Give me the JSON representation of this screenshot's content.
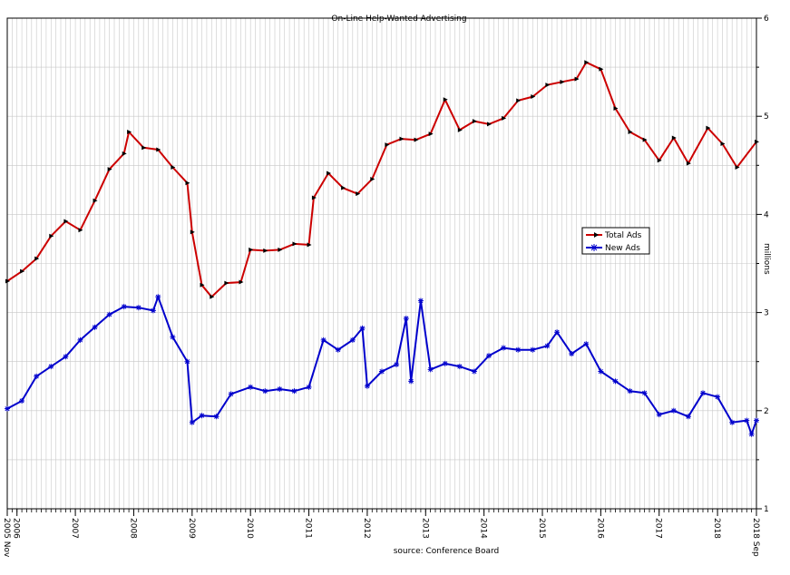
{
  "chart_data": {
    "type": "line",
    "title": "On-Line Help-Wanted Advertising",
    "source": "source: Conference Board",
    "ylabel": "millions",
    "ylim": [
      1,
      6
    ],
    "y_ticks": [
      1,
      2,
      3,
      4,
      5,
      6
    ],
    "x_range": [
      "2005-11",
      "2018-09"
    ],
    "x_tick_labels": [
      "2005 Nov",
      "2006",
      "2007",
      "2008",
      "2009",
      "2010",
      "2011",
      "2012",
      "2013",
      "2014",
      "2015",
      "2016",
      "2017",
      "2018",
      "2018 Sep"
    ],
    "grid": true,
    "legend_placement": "right-center",
    "series": [
      {
        "name": "Total Ads",
        "color": "#cc0000",
        "marker": "arrow",
        "points": [
          [
            "2005-11",
            3.32
          ],
          [
            "2006-02",
            3.42
          ],
          [
            "2006-05",
            3.55
          ],
          [
            "2006-08",
            3.78
          ],
          [
            "2006-11",
            3.93
          ],
          [
            "2007-02",
            3.84
          ],
          [
            "2007-05",
            4.14
          ],
          [
            "2007-08",
            4.46
          ],
          [
            "2007-11",
            4.62
          ],
          [
            "2007-12",
            4.84
          ],
          [
            "2008-03",
            4.68
          ],
          [
            "2008-06",
            4.66
          ],
          [
            "2008-09",
            4.48
          ],
          [
            "2008-12",
            4.32
          ],
          [
            "2009-01",
            3.82
          ],
          [
            "2009-03",
            3.28
          ],
          [
            "2009-05",
            3.16
          ],
          [
            "2009-08",
            3.3
          ],
          [
            "2009-11",
            3.31
          ],
          [
            "2010-01",
            3.64
          ],
          [
            "2010-04",
            3.63
          ],
          [
            "2010-07",
            3.64
          ],
          [
            "2010-10",
            3.7
          ],
          [
            "2011-01",
            3.69
          ],
          [
            "2011-02",
            4.17
          ],
          [
            "2011-05",
            4.42
          ],
          [
            "2011-08",
            4.27
          ],
          [
            "2011-11",
            4.21
          ],
          [
            "2012-02",
            4.36
          ],
          [
            "2012-05",
            4.71
          ],
          [
            "2012-08",
            4.77
          ],
          [
            "2012-11",
            4.76
          ],
          [
            "2013-02",
            4.82
          ],
          [
            "2013-05",
            5.17
          ],
          [
            "2013-08",
            4.86
          ],
          [
            "2013-11",
            4.95
          ],
          [
            "2014-02",
            4.92
          ],
          [
            "2014-05",
            4.98
          ],
          [
            "2014-08",
            5.16
          ],
          [
            "2014-11",
            5.2
          ],
          [
            "2015-02",
            5.32
          ],
          [
            "2015-05",
            5.35
          ],
          [
            "2015-08",
            5.38
          ],
          [
            "2015-10",
            5.55
          ],
          [
            "2016-01",
            5.48
          ],
          [
            "2016-04",
            5.08
          ],
          [
            "2016-07",
            4.84
          ],
          [
            "2016-10",
            4.76
          ],
          [
            "2017-01",
            4.55
          ],
          [
            "2017-04",
            4.78
          ],
          [
            "2017-07",
            4.52
          ],
          [
            "2017-11",
            4.88
          ],
          [
            "2018-02",
            4.72
          ],
          [
            "2018-05",
            4.48
          ],
          [
            "2018-09",
            4.74
          ]
        ]
      },
      {
        "name": "New Ads",
        "color": "#0000cc",
        "marker": "asterisk",
        "points": [
          [
            "2005-11",
            2.02
          ],
          [
            "2006-02",
            2.1
          ],
          [
            "2006-05",
            2.35
          ],
          [
            "2006-08",
            2.45
          ],
          [
            "2006-11",
            2.55
          ],
          [
            "2007-02",
            2.72
          ],
          [
            "2007-05",
            2.85
          ],
          [
            "2007-08",
            2.98
          ],
          [
            "2007-11",
            3.06
          ],
          [
            "2008-02",
            3.05
          ],
          [
            "2008-05",
            3.02
          ],
          [
            "2008-06",
            3.16
          ],
          [
            "2008-09",
            2.75
          ],
          [
            "2008-12",
            2.5
          ],
          [
            "2009-01",
            1.88
          ],
          [
            "2009-03",
            1.95
          ],
          [
            "2009-06",
            1.94
          ],
          [
            "2009-09",
            2.17
          ],
          [
            "2010-01",
            2.24
          ],
          [
            "2010-04",
            2.2
          ],
          [
            "2010-07",
            2.22
          ],
          [
            "2010-10",
            2.2
          ],
          [
            "2011-01",
            2.24
          ],
          [
            "2011-04",
            2.72
          ],
          [
            "2011-07",
            2.62
          ],
          [
            "2011-10",
            2.72
          ],
          [
            "2011-12",
            2.84
          ],
          [
            "2012-01",
            2.25
          ],
          [
            "2012-04",
            2.4
          ],
          [
            "2012-07",
            2.47
          ],
          [
            "2012-09",
            2.94
          ],
          [
            "2012-10",
            2.3
          ],
          [
            "2012-12",
            3.12
          ],
          [
            "2013-02",
            2.42
          ],
          [
            "2013-05",
            2.48
          ],
          [
            "2013-08",
            2.45
          ],
          [
            "2013-11",
            2.4
          ],
          [
            "2014-02",
            2.56
          ],
          [
            "2014-05",
            2.64
          ],
          [
            "2014-08",
            2.62
          ],
          [
            "2014-11",
            2.62
          ],
          [
            "2015-02",
            2.66
          ],
          [
            "2015-04",
            2.8
          ],
          [
            "2015-07",
            2.58
          ],
          [
            "2015-10",
            2.68
          ],
          [
            "2016-01",
            2.4
          ],
          [
            "2016-04",
            2.3
          ],
          [
            "2016-07",
            2.2
          ],
          [
            "2016-10",
            2.18
          ],
          [
            "2017-01",
            1.96
          ],
          [
            "2017-04",
            2.0
          ],
          [
            "2017-07",
            1.94
          ],
          [
            "2017-10",
            2.18
          ],
          [
            "2018-01",
            2.14
          ],
          [
            "2018-04",
            1.88
          ],
          [
            "2018-07",
            1.9
          ],
          [
            "2018-08",
            1.76
          ],
          [
            "2018-09",
            1.9
          ]
        ]
      }
    ]
  }
}
